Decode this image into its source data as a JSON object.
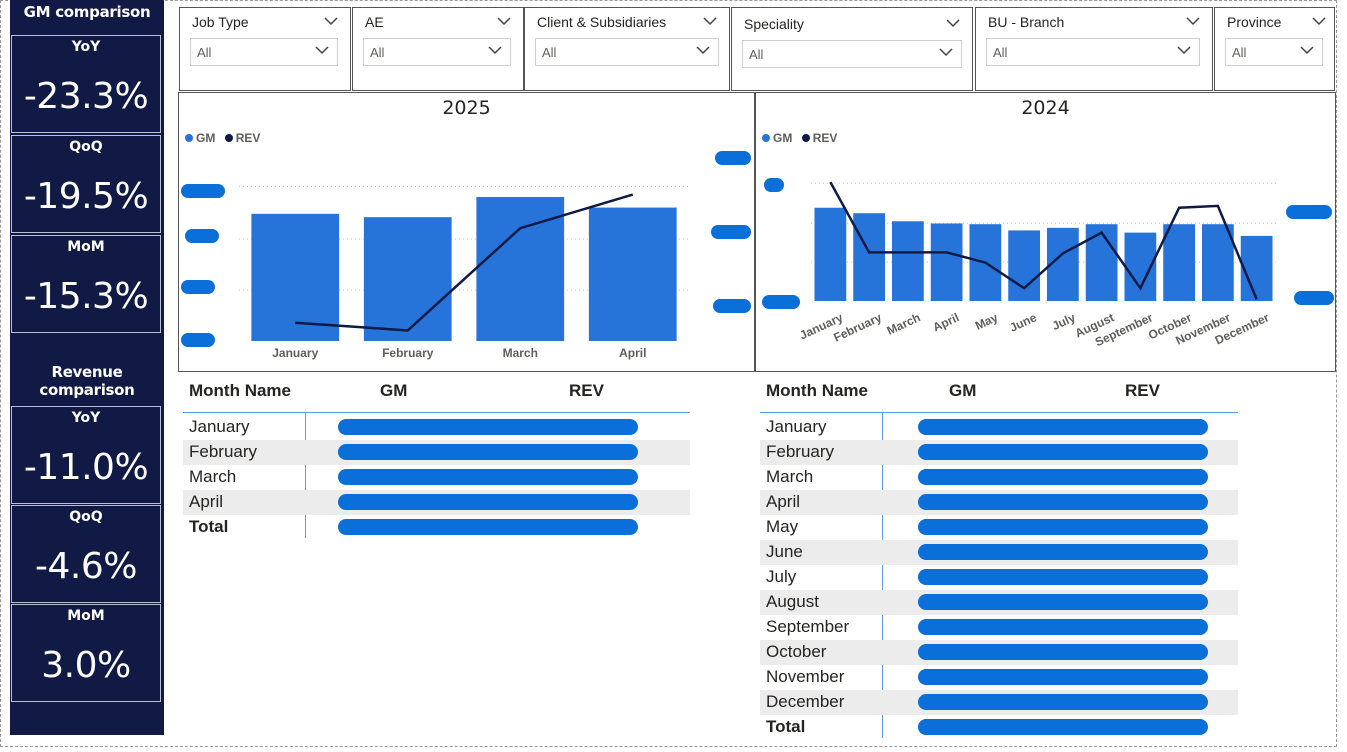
{
  "gm_comparison": {
    "title": "GM comparison",
    "cards": [
      {
        "label": "YoY",
        "value": "-23.3%"
      },
      {
        "label": "QoQ",
        "value": "-19.5%"
      },
      {
        "label": "MoM",
        "value": "-15.3%"
      }
    ]
  },
  "revenue_comparison": {
    "title": "Revenue comparison",
    "cards": [
      {
        "label": "YoY",
        "value": "-11.0%"
      },
      {
        "label": "QoQ",
        "value": "-4.6%"
      },
      {
        "label": "MoM",
        "value": "3.0%"
      }
    ]
  },
  "slicers": [
    {
      "title": "Job Type",
      "value": "All"
    },
    {
      "title": "AE",
      "value": "All"
    },
    {
      "title": "Client & Subsidiaries",
      "value": "All"
    },
    {
      "title": "Speciality",
      "value": "All"
    },
    {
      "title": "BU - Branch",
      "value": "All"
    },
    {
      "title": "Province",
      "value": "All"
    }
  ],
  "chart_data": [
    {
      "type": "bar",
      "title": "2025",
      "legend": [
        "GM",
        "REV"
      ],
      "categories": [
        "January",
        "February",
        "March",
        "April"
      ],
      "series": [
        {
          "name": "GM",
          "kind": "bar",
          "values": [
            2.65,
            2.58,
            3.0,
            2.78
          ]
        },
        {
          "name": "REV",
          "kind": "line",
          "values": [
            0.38,
            0.22,
            2.35,
            3.05
          ]
        }
      ],
      "ylim": [
        0,
        3.5
      ],
      "colors": {
        "GM": "#2673d9",
        "REV": "#101b45"
      }
    },
    {
      "type": "bar",
      "title": "2024",
      "legend": [
        "GM",
        "REV"
      ],
      "categories": [
        "January",
        "February",
        "March",
        "April",
        "May",
        "June",
        "July",
        "August",
        "September",
        "October",
        "November",
        "December"
      ],
      "series": [
        {
          "name": "GM",
          "kind": "bar",
          "values": [
            2.55,
            2.4,
            2.18,
            2.12,
            2.1,
            1.93,
            2.0,
            2.1,
            1.87,
            2.1,
            2.1,
            1.78
          ]
        },
        {
          "name": "REV",
          "kind": "line",
          "values": [
            3.25,
            1.33,
            1.33,
            1.33,
            1.05,
            0.35,
            1.3,
            1.87,
            0.35,
            2.55,
            2.6,
            0.05
          ]
        }
      ],
      "ylim": [
        0,
        3.5
      ],
      "colors": {
        "GM": "#2673d9",
        "REV": "#101b45"
      }
    }
  ],
  "table_2025": {
    "headers": [
      "Month Name",
      "GM",
      "REV"
    ],
    "rows": [
      "January",
      "February",
      "March",
      "April"
    ],
    "total": "Total"
  },
  "table_2024": {
    "headers": [
      "Month Name",
      "GM",
      "REV"
    ],
    "rows": [
      "January",
      "February",
      "March",
      "April",
      "May",
      "June",
      "July",
      "August",
      "September",
      "October",
      "November",
      "December"
    ],
    "total": "Total"
  }
}
